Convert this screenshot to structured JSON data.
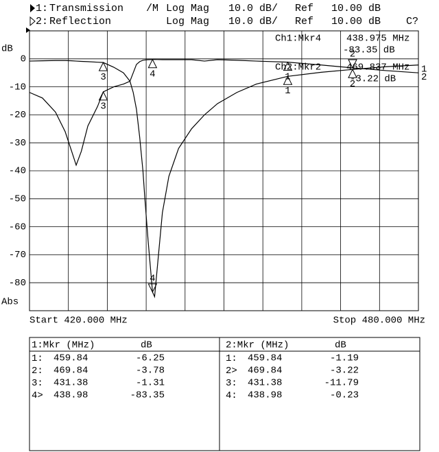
{
  "chart_data": {
    "type": "line",
    "channels": [
      {
        "id": "1:",
        "flag": "/M",
        "format": "Log Mag",
        "scale": "10.0 dB/",
        "ref": "Ref",
        "ref_value": "10.00 dB"
      },
      {
        "id": "2:",
        "format": "Log Mag",
        "scale": "10.0 dB/",
        "ref": "Ref",
        "ref_value": "10.00 dB",
        "status": "C?"
      }
    ],
    "y_label": "dB",
    "y_format": "Abs",
    "start_label": "Start 420.000 MHz",
    "stop_label": "Stop 480.000 MHz",
    "readouts": [
      {
        "label": "Ch1:Mkr4",
        "freq": "438.975 MHz",
        "value": "-83.35 dB"
      },
      {
        "label": "Ch2:Mkr2",
        "freq": "469.837 MHz",
        "value": "-3.22 dB"
      }
    ],
    "x": [
      420,
      422,
      424,
      425.5,
      426.5,
      427.2,
      428,
      429,
      430.5,
      431.38,
      433,
      434.5,
      435.5,
      436,
      436.5,
      437,
      437.5,
      437.8,
      438.3,
      438.98,
      439.3,
      439.7,
      440.5,
      441.5,
      443,
      445,
      447,
      449,
      452,
      455,
      459.84,
      465,
      469.84,
      475,
      480
    ],
    "series": [
      {
        "name": "Transmission",
        "label": "1",
        "color": "#000000",
        "values": [
          -0.8,
          -0.7,
          -0.6,
          -0.6,
          -0.7,
          -0.8,
          -0.9,
          -1,
          -1.2,
          -1.31,
          -3,
          -5,
          -8,
          -12,
          -18,
          -28,
          -40,
          -50,
          -65,
          -83.35,
          -85,
          -75,
          -55,
          -42,
          -32,
          -25,
          -20,
          -16,
          -12,
          -9,
          -6.25,
          -4.8,
          -3.78,
          -2.8,
          -2.2
        ]
      },
      {
        "name": "Reflection",
        "label": "2",
        "color": "#000000",
        "values": [
          -12,
          -14,
          -19,
          -26,
          -33,
          -38,
          -33,
          -24,
          -17,
          -11.79,
          -10,
          -9,
          -8,
          -5,
          -2,
          -1,
          -0.5,
          -0.4,
          -0.3,
          -0.23,
          -0.23,
          -0.25,
          -0.3,
          -0.3,
          -0.3,
          -0.3,
          -0.8,
          -0.3,
          -0.5,
          -0.8,
          -1.19,
          -2.2,
          -3.22,
          -4.2,
          -5
        ]
      }
    ],
    "xlim": [
      420,
      480
    ],
    "xticks": [
      420,
      426,
      432,
      438,
      444,
      450,
      456,
      462,
      468,
      474,
      480
    ],
    "ylim": [
      -90,
      10
    ],
    "yticks": [
      0,
      -10,
      -20,
      -30,
      -40,
      -50,
      -60,
      -70,
      -80
    ],
    "grid": true,
    "marker_tables": [
      {
        "title": "1:Mkr (MHz)",
        "unit": "dB",
        "rows": [
          {
            "marker": "1",
            "sep": ":",
            "freq": 459.84,
            "db": -6.25
          },
          {
            "marker": "2",
            "sep": ":",
            "freq": 469.84,
            "db": -3.78
          },
          {
            "marker": "3",
            "sep": ":",
            "freq": 431.38,
            "db": -1.31
          },
          {
            "marker": "4",
            "sep": ">",
            "freq": 438.98,
            "db": -83.35
          }
        ]
      },
      {
        "title": "2:Mkr (MHz)",
        "unit": "dB",
        "rows": [
          {
            "marker": "1",
            "sep": ":",
            "freq": 459.84,
            "db": -1.19
          },
          {
            "marker": "2",
            "sep": ">",
            "freq": 469.84,
            "db": -3.22
          },
          {
            "marker": "3",
            "sep": ":",
            "freq": 431.38,
            "db": -11.79
          },
          {
            "marker": "4",
            "sep": ":",
            "freq": 438.98,
            "db": -0.23
          }
        ]
      }
    ]
  }
}
